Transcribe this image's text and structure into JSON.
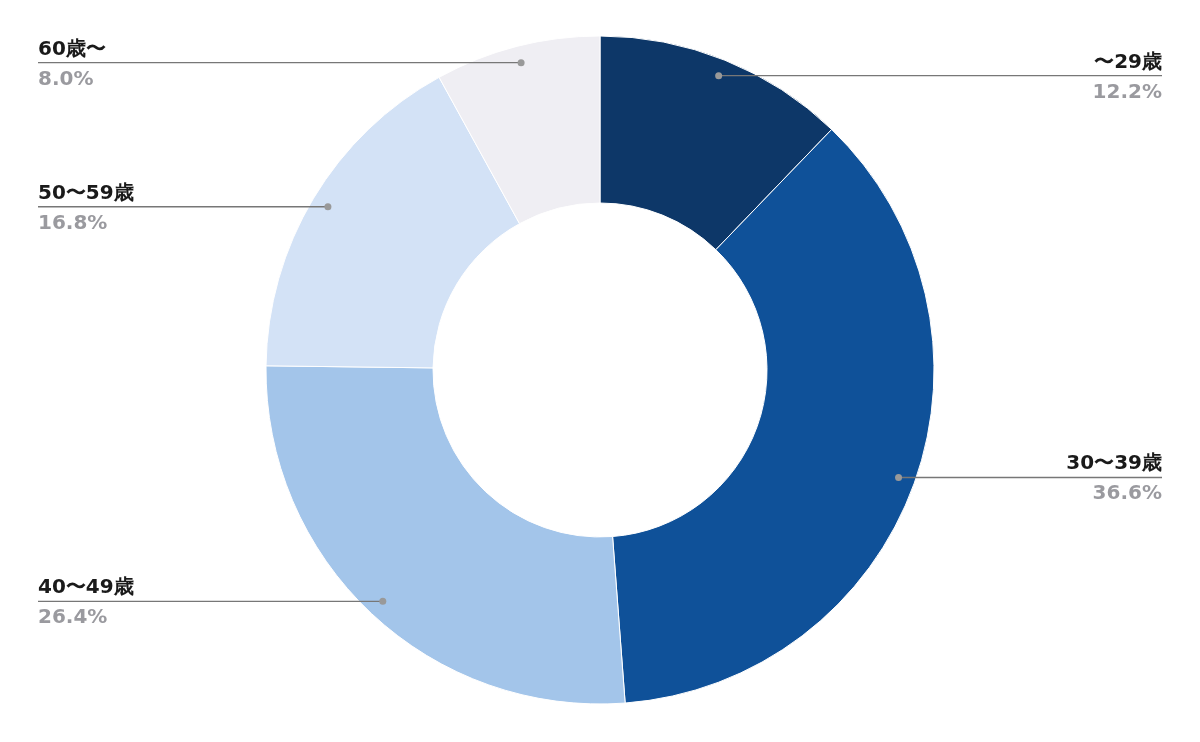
{
  "chart_data": {
    "type": "donut",
    "categories": [
      "〜29歳",
      "30〜39歳",
      "40〜49歳",
      "50〜59歳",
      "60歳〜"
    ],
    "values": [
      12.2,
      36.6,
      26.4,
      16.8,
      8.0
    ],
    "value_labels": [
      "12.2%",
      "36.6%",
      "26.4%",
      "16.8%",
      "8.0%"
    ],
    "colors": [
      "#0d3768",
      "#0f5199",
      "#a3c5ea",
      "#d3e2f6",
      "#efeef3"
    ]
  }
}
